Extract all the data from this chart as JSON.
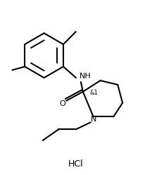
{
  "background_color": "#ffffff",
  "line_color": "#000000",
  "line_width": 1.5,
  "font_size_label": 8,
  "font_size_hcl": 9,
  "HCl_label": "HCl",
  "stereo_label": "&1",
  "NH_label": "NH",
  "N_label": "N",
  "O_label": "O",
  "figw": 2.16,
  "figh": 2.48,
  "dpi": 100
}
